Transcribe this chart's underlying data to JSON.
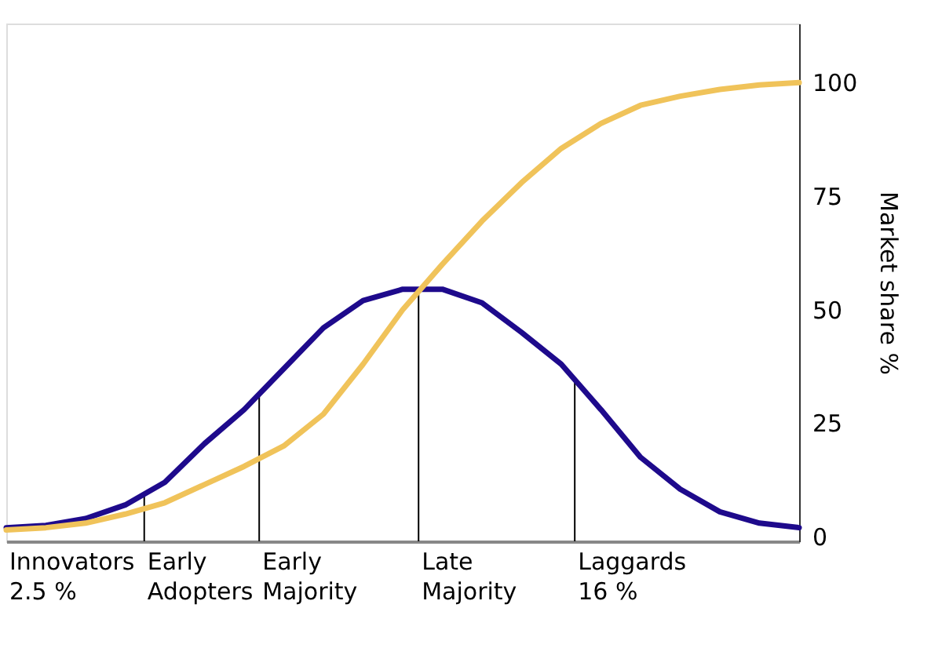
{
  "chart_data": {
    "type": "line",
    "ylabel": "Market share %",
    "categories": [
      null,
      null,
      null,
      null,
      null,
      null,
      null,
      null,
      null,
      null,
      null,
      null,
      null,
      null,
      null,
      null,
      null,
      null,
      null,
      null,
      null
    ],
    "series": [
      {
        "color": "#1e0a8c",
        "values": [
          2,
          2.5,
          4,
          7,
          12,
          20.5,
          28,
          37,
          46,
          52,
          54.5,
          54.5,
          51.5,
          45,
          38,
          28,
          17.5,
          10.5,
          5.5,
          3,
          2
        ]
      },
      {
        "color": "#f0c35a",
        "values": [
          1.5,
          2,
          3,
          5,
          7.5,
          11.5,
          15.5,
          20,
          27,
          38,
          50,
          60,
          69.5,
          78,
          85.5,
          91,
          95,
          97,
          98.5,
          99.5,
          100
        ]
      }
    ],
    "ylim": [
      -1,
      113
    ],
    "yticks": [
      0,
      25,
      50,
      75,
      100
    ],
    "tick_labels": "y",
    "grid": false,
    "marker": "none",
    "line_style": "solid",
    "annotations": [
      "Innovators\n2.5 %",
      "Early\nAdopters",
      "Early\nMajority",
      "Late\nMajority",
      "Laggards\n16 %"
    ]
  }
}
